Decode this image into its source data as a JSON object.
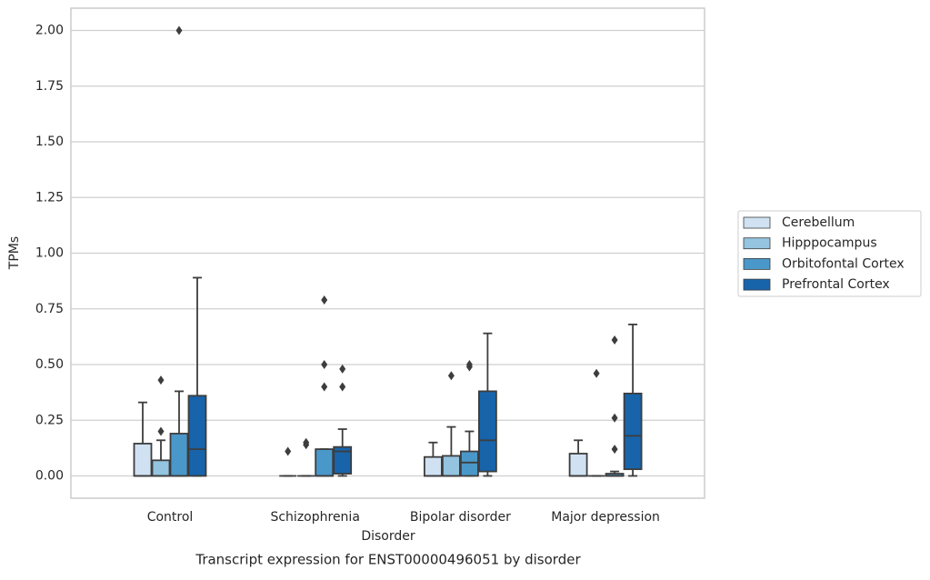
{
  "chart_data": {
    "type": "box",
    "title": "Transcript expression for ENST00000496051 by disorder",
    "x_label": "Disorder",
    "y_label": "TPMs",
    "categories": [
      "Control",
      "Schizophrenia",
      "Bipolar disorder",
      "Major depression"
    ],
    "ylim": [
      -0.1,
      2.1
    ],
    "yticks": [
      {
        "value": 0,
        "label": "0.00"
      },
      {
        "value": 0.25,
        "label": "0.25"
      },
      {
        "value": 0.5,
        "label": "0.50"
      },
      {
        "value": 0.75,
        "label": "0.75"
      },
      {
        "value": 1,
        "label": "1.00"
      },
      {
        "value": 1.25,
        "label": "1.25"
      },
      {
        "value": 1.5,
        "label": "1.50"
      },
      {
        "value": 1.75,
        "label": "1.75"
      },
      {
        "value": 2,
        "label": "2.00"
      }
    ],
    "grid": true,
    "legend_position": "right",
    "series": [
      {
        "name": "Cerebellum",
        "color": "#d0e1f2",
        "boxes": [
          {
            "min": 0,
            "q1": 0,
            "median": 0,
            "q3": 0.145,
            "max": 0.33,
            "outliers": []
          },
          {
            "min": 0,
            "q1": 0,
            "median": 0,
            "q3": 0,
            "max": 0,
            "outliers": [
              0.11
            ]
          },
          {
            "min": 0,
            "q1": 0,
            "median": 0,
            "q3": 0.085,
            "max": 0.15,
            "outliers": []
          },
          {
            "min": 0,
            "q1": 0,
            "median": 0,
            "q3": 0.1,
            "max": 0.16,
            "outliers": []
          }
        ]
      },
      {
        "name": "Hipppocampus",
        "color": "#94c4df",
        "boxes": [
          {
            "min": 0,
            "q1": 0,
            "median": 0,
            "q3": 0.07,
            "max": 0.16,
            "outliers": [
              0.2,
              0.43
            ]
          },
          {
            "min": 0,
            "q1": 0,
            "median": 0,
            "q3": 0,
            "max": 0,
            "outliers": [
              0.14,
              0.15
            ]
          },
          {
            "min": 0,
            "q1": 0,
            "median": 0,
            "q3": 0.09,
            "max": 0.22,
            "outliers": [
              0.45
            ]
          },
          {
            "min": 0,
            "q1": 0,
            "median": 0,
            "q3": 0,
            "max": 0,
            "outliers": [
              0.46
            ]
          }
        ]
      },
      {
        "name": "Orbitofontal Cortex",
        "color": "#4a98c9",
        "boxes": [
          {
            "min": 0,
            "q1": 0,
            "median": 0,
            "q3": 0.19,
            "max": 0.38,
            "outliers": [
              2.0
            ]
          },
          {
            "min": 0,
            "q1": 0,
            "median": 0,
            "q3": 0.12,
            "max": 0.12,
            "outliers": [
              0.4,
              0.5,
              0.79
            ]
          },
          {
            "min": 0,
            "q1": 0,
            "median": 0.06,
            "q3": 0.11,
            "max": 0.2,
            "outliers": [
              0.49,
              0.5
            ]
          },
          {
            "min": 0,
            "q1": 0,
            "median": 0,
            "q3": 0.01,
            "max": 0.02,
            "outliers": [
              0.12,
              0.26,
              0.61
            ]
          }
        ]
      },
      {
        "name": "Prefrontal Cortex",
        "color": "#1764ab",
        "boxes": [
          {
            "min": 0,
            "q1": 0,
            "median": 0.12,
            "q3": 0.36,
            "max": 0.89,
            "outliers": []
          },
          {
            "min": 0,
            "q1": 0.01,
            "median": 0.11,
            "q3": 0.13,
            "max": 0.21,
            "outliers": [
              0.4,
              0.48
            ]
          },
          {
            "min": 0,
            "q1": 0.02,
            "median": 0.16,
            "q3": 0.38,
            "max": 0.64,
            "outliers": []
          },
          {
            "min": 0,
            "q1": 0.03,
            "median": 0.18,
            "q3": 0.37,
            "max": 0.68,
            "outliers": []
          }
        ]
      }
    ]
  }
}
